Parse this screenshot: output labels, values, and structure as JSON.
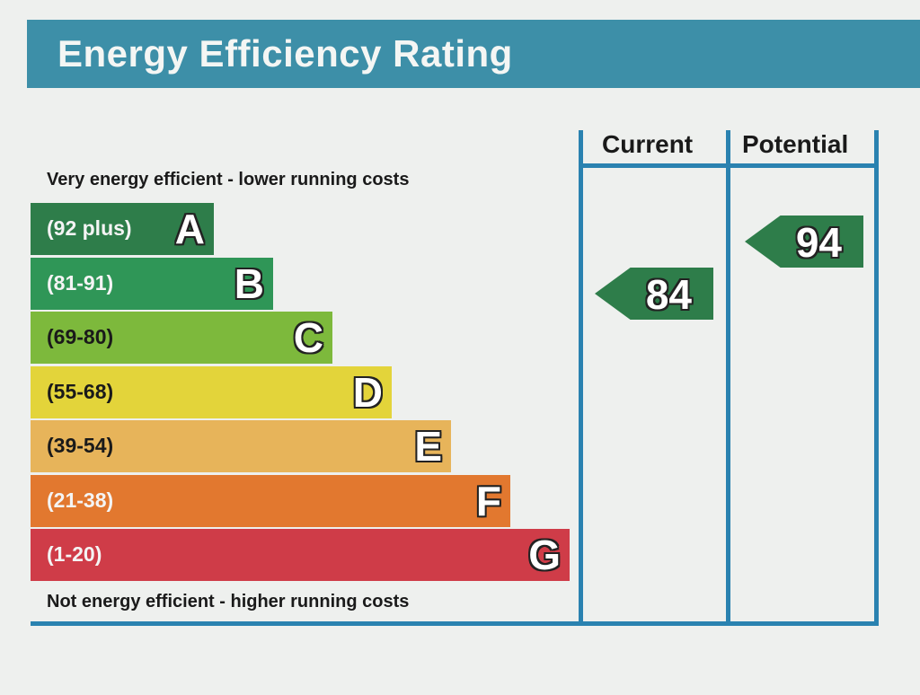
{
  "header": {
    "title": "Energy Efficiency Rating"
  },
  "captions": {
    "top": "Very energy efficient - lower running costs",
    "bottom": "Not energy efficient - higher running costs"
  },
  "columns": {
    "current": "Current",
    "potential": "Potential"
  },
  "chart_data": {
    "type": "bar",
    "title": "Energy Efficiency Rating",
    "bands": [
      {
        "letter": "A",
        "range": "(92 plus)",
        "color": "#2e7d4a"
      },
      {
        "letter": "B",
        "range": "(81-91)",
        "color": "#2f9657"
      },
      {
        "letter": "C",
        "range": "(69-80)",
        "color": "#7db93c"
      },
      {
        "letter": "D",
        "range": "(55-68)",
        "color": "#e3d43a"
      },
      {
        "letter": "E",
        "range": "(39-54)",
        "color": "#e7b45a"
      },
      {
        "letter": "F",
        "range": "(21-38)",
        "color": "#e2782f"
      },
      {
        "letter": "G",
        "range": "(1-20)",
        "color": "#cf3c48"
      }
    ],
    "current": {
      "value": "84",
      "band": "B",
      "color": "#2e7d4a"
    },
    "potential": {
      "value": "94",
      "band": "A",
      "color": "#2e7d4a"
    }
  }
}
